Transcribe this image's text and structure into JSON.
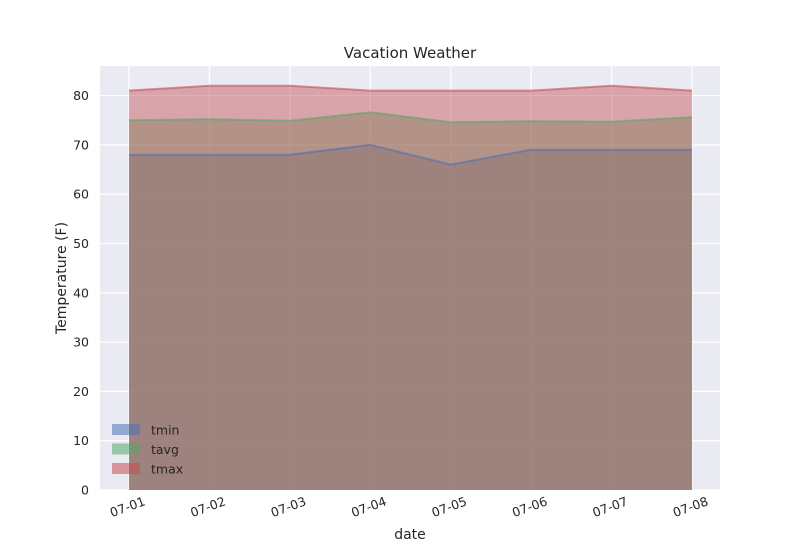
{
  "chart_data": {
    "type": "area",
    "title": "Vacation Weather",
    "xlabel": "date",
    "ylabel": "Temperature (F)",
    "categories": [
      "07-01",
      "07-02",
      "07-03",
      "07-04",
      "07-05",
      "07-06",
      "07-07",
      "07-08"
    ],
    "series": [
      {
        "name": "tmin",
        "values": [
          68,
          68,
          68,
          70,
          66,
          69,
          69,
          69
        ],
        "color": "#4C72B0"
      },
      {
        "name": "tavg",
        "values": [
          75,
          75.2,
          74.9,
          76.6,
          74.6,
          74.8,
          74.7,
          75.6
        ],
        "color": "#55A868"
      },
      {
        "name": "tmax",
        "values": [
          81,
          82,
          82,
          81,
          81,
          81,
          82,
          81
        ],
        "color": "#C44E52"
      }
    ],
    "ylim": [
      0,
      86
    ],
    "yticks": [
      0,
      10,
      20,
      30,
      40,
      50,
      60,
      70,
      80
    ],
    "grid": true,
    "legend_position": "lower-left",
    "background_color": "#EAEAF2",
    "grid_color": "#FFFFFF"
  }
}
